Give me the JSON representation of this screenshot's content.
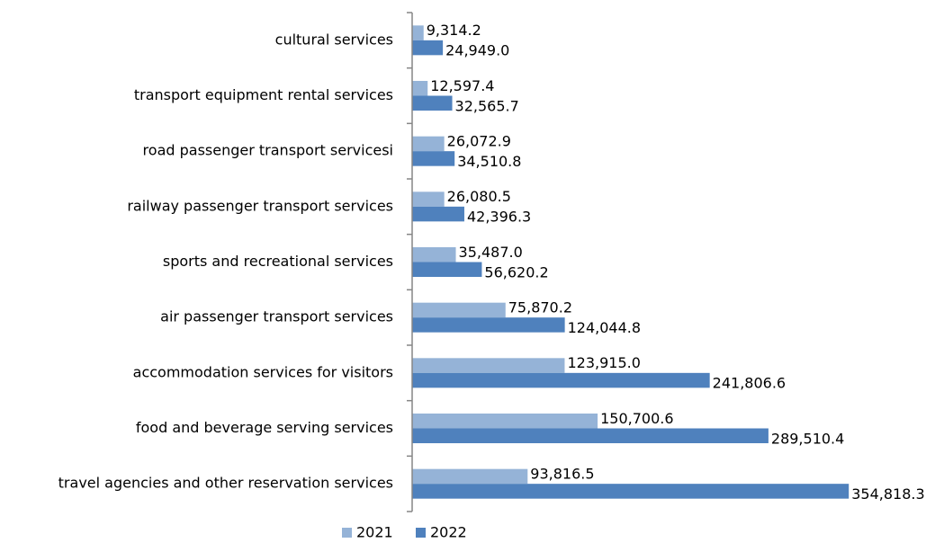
{
  "chart_data": {
    "type": "hbar",
    "categories": [
      "cultural services",
      "transport equipment rental services",
      "road passenger transport servicesi",
      "railway passenger transport services",
      "sports and recreational services",
      "air passenger transport services",
      "accommodation services for visitors",
      "food and beverage serving services",
      "travel agencies and other reservation services"
    ],
    "series": [
      {
        "name": "2021",
        "color": "#95b3d7",
        "values": [
          9314.2,
          12597.4,
          26072.9,
          26080.5,
          35487.0,
          75870.2,
          123915.0,
          150700.6,
          93816.5
        ],
        "value_labels": [
          "9,314.2",
          "12,597.4",
          "26,072.9",
          "26,080.5",
          "35,487.0",
          "75,870.2",
          "123,915.0",
          "150,700.6",
          "93,816.5"
        ]
      },
      {
        "name": "2022",
        "color": "#4f81bd",
        "values": [
          24949.0,
          32565.7,
          34510.8,
          42396.3,
          56620.2,
          124044.8,
          241806.6,
          289510.4,
          354818.3
        ],
        "value_labels": [
          "24,949.0",
          "32,565.7",
          "34,510.8",
          "42,396.3",
          "56,620.2",
          "124,044.8",
          "241,806.6",
          "289,510.4",
          "354,818.3"
        ]
      }
    ],
    "xlim": [
      0,
      400000
    ],
    "legend": "bottom"
  }
}
